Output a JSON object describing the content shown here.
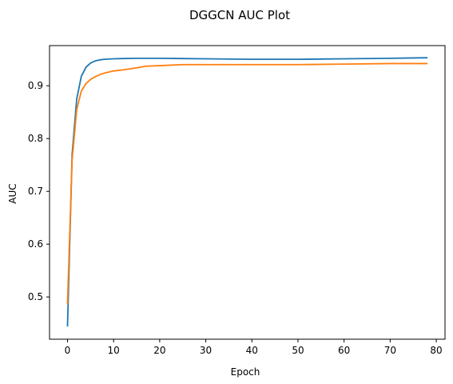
{
  "chart_data": {
    "type": "line",
    "title": "DGGCN AUC Plot",
    "xlabel": "Epoch",
    "ylabel": "AUC",
    "xlim": [
      -3.9,
      81.9
    ],
    "ylim": [
      0.42,
      0.976
    ],
    "xticks": [
      0,
      10,
      20,
      30,
      40,
      50,
      60,
      70,
      80
    ],
    "yticks": [
      0.5,
      0.6,
      0.7,
      0.8,
      0.9
    ],
    "ytick_labels": [
      "0.5",
      "0.6",
      "0.7",
      "0.8",
      "0.9"
    ],
    "grid": false,
    "legend": "none",
    "series": [
      {
        "color": "#1f77b4",
        "x": [
          0,
          1,
          2,
          3,
          4,
          5,
          6,
          7,
          8,
          10,
          12,
          15,
          20,
          25,
          30,
          40,
          50,
          55,
          60,
          70,
          78
        ],
        "y": [
          0.445,
          0.77,
          0.875,
          0.918,
          0.935,
          0.943,
          0.947,
          0.949,
          0.95,
          0.951,
          0.9515,
          0.952,
          0.952,
          0.9515,
          0.951,
          0.95,
          0.95,
          0.9505,
          0.951,
          0.952,
          0.953
        ]
      },
      {
        "color": "#ff7f0e",
        "x": [
          0,
          1,
          2,
          3,
          4,
          5,
          6,
          7,
          8,
          10,
          12,
          15,
          17,
          20,
          25,
          30,
          40,
          50,
          60,
          70,
          78
        ],
        "y": [
          0.487,
          0.76,
          0.855,
          0.89,
          0.904,
          0.912,
          0.917,
          0.921,
          0.924,
          0.928,
          0.93,
          0.934,
          0.937,
          0.938,
          0.94,
          0.94,
          0.94,
          0.94,
          0.941,
          0.942,
          0.942
        ]
      }
    ]
  }
}
